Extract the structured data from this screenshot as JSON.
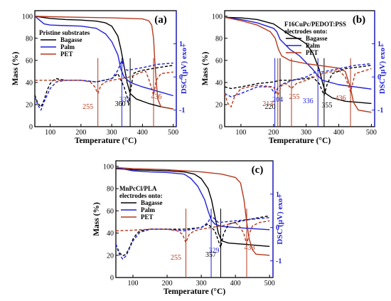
{
  "chart_data": [
    {
      "type": "line",
      "panel_label": "(a)",
      "legend_title": "Pristine substrates",
      "legend_position": "upper-left",
      "xlabel": "Temperature (°C)",
      "ylabel_left": "Mass (%)",
      "ylabel_right": "DSC (µV) exo+",
      "xlim": [
        50,
        510
      ],
      "ylim_left": [
        0,
        105
      ],
      "ylim_right": [
        -1.5,
        2
      ],
      "x_ticks": [
        100,
        200,
        300,
        400,
        500
      ],
      "y_ticks_left": [
        0,
        20,
        40,
        60,
        80,
        100
      ],
      "y_ticks_right": [
        -1,
        0,
        1
      ],
      "grid": false,
      "series": [
        {
          "name": "Bagasse",
          "color": "#000000",
          "axis": "left",
          "style": "solid",
          "x": [
            50,
            100,
            150,
            200,
            250,
            280,
            300,
            320,
            330,
            340,
            350,
            360,
            380,
            420,
            460,
            500
          ],
          "y": [
            100,
            98,
            97,
            96.5,
            95.5,
            94,
            91,
            82,
            70,
            55,
            40,
            30,
            25,
            21,
            18,
            16
          ]
        },
        {
          "name": "Palm",
          "color": "#1f1fd6",
          "axis": "left",
          "style": "solid",
          "x": [
            50,
            80,
            100,
            150,
            200,
            250,
            280,
            300,
            320,
            330,
            340,
            360,
            400,
            450,
            500
          ],
          "y": [
            100,
            93,
            92,
            91.5,
            91,
            89,
            84,
            77,
            65,
            52,
            45,
            40,
            36,
            32,
            28
          ]
        },
        {
          "name": "PET",
          "color": "#b5391c",
          "axis": "left",
          "style": "solid",
          "x": [
            50,
            100,
            200,
            300,
            360,
            400,
            420,
            430,
            436,
            440,
            445,
            450,
            460,
            500
          ],
          "y": [
            100,
            99.5,
            99,
            98.5,
            98,
            97.5,
            96,
            92,
            80,
            60,
            40,
            25,
            18,
            16
          ]
        },
        {
          "name": "Bagasse",
          "color": "#000000",
          "axis": "right",
          "style": "dashed",
          "x": [
            50,
            60,
            70,
            80,
            90,
            100,
            110,
            120,
            150,
            200,
            250,
            300,
            320,
            340,
            350,
            355,
            360,
            370,
            380,
            400,
            450,
            500
          ],
          "y": [
            -0.55,
            -0.8,
            -0.9,
            -0.7,
            -0.4,
            -0.2,
            -0.1,
            -0.05,
            -0.1,
            -0.1,
            -0.15,
            -0.05,
            0.1,
            -0.3,
            -0.6,
            -0.85,
            -0.5,
            0.1,
            0.15,
            0.2,
            0.28,
            0.35
          ]
        },
        {
          "name": "Palm",
          "color": "#1f1fd6",
          "axis": "right",
          "style": "dashed",
          "x": [
            50,
            60,
            70,
            80,
            100,
            120,
            150,
            200,
            250,
            300,
            320,
            333,
            340,
            350,
            400,
            450,
            500
          ],
          "y": [
            -0.6,
            -0.85,
            -1.0,
            -0.75,
            -0.35,
            -0.15,
            -0.1,
            -0.1,
            -0.15,
            -0.05,
            0.2,
            0.5,
            0.3,
            0.2,
            0.28,
            0.38,
            0.42
          ]
        },
        {
          "name": "PET",
          "color": "#b5391c",
          "axis": "right",
          "style": "dashed",
          "x": [
            50,
            100,
            150,
            200,
            230,
            245,
            255,
            265,
            280,
            300,
            330,
            360,
            390,
            410,
            420,
            436,
            445,
            460,
            500
          ],
          "y": [
            -0.1,
            -0.1,
            -0.1,
            -0.1,
            -0.15,
            -0.3,
            -0.5,
            -0.25,
            -0.15,
            -0.1,
            -0.05,
            0.0,
            0.12,
            0.18,
            -0.05,
            -0.55,
            -0.1,
            0.1,
            0.15
          ]
        }
      ],
      "annotations": [
        {
          "text": "255",
          "x": 255,
          "color": "#b5391c"
        },
        {
          "text": "333",
          "x": 333,
          "color": "#1f1fd6"
        },
        {
          "text": "360",
          "x": 360,
          "color": "#000000"
        },
        {
          "text": "436",
          "x": 436,
          "color": "#b5391c"
        }
      ]
    },
    {
      "type": "line",
      "panel_label": "(b)",
      "legend_title": "F16CuPc/PEDOT:PSS",
      "legend_subtitle": "electrodes onto:",
      "legend_position": "upper-right",
      "xlabel": "Temperature (°C)",
      "ylabel_left": "Mass (%)",
      "ylabel_right": "DSC (µV) exo+",
      "xlim": [
        50,
        510
      ],
      "ylim_left": [
        0,
        105
      ],
      "ylim_right": [
        -1.5,
        2
      ],
      "x_ticks": [
        100,
        200,
        300,
        400,
        500
      ],
      "y_ticks_left": [
        0,
        20,
        40,
        60,
        80,
        100
      ],
      "y_ticks_right": [
        -1,
        0,
        1
      ],
      "grid": false,
      "series": [
        {
          "name": "Bagasse",
          "color": "#000000",
          "axis": "left",
          "style": "solid",
          "x": [
            50,
            100,
            150,
            200,
            220,
            250,
            280,
            300,
            320,
            340,
            350,
            355,
            360,
            380,
            420,
            460,
            500
          ],
          "y": [
            99,
            98.5,
            97,
            93,
            89,
            83,
            79,
            75,
            67,
            52,
            40,
            35,
            30,
            26,
            23,
            22,
            21
          ]
        },
        {
          "name": "Palm",
          "color": "#1f1fd6",
          "axis": "left",
          "style": "solid",
          "x": [
            50,
            100,
            150,
            200,
            210,
            220,
            250,
            280,
            300,
            320,
            336,
            350,
            400,
            450,
            500
          ],
          "y": [
            99,
            97,
            94,
            89,
            86,
            79,
            70,
            64,
            58,
            52,
            46,
            42,
            38,
            36,
            34
          ]
        },
        {
          "name": "PET",
          "color": "#b5391c",
          "axis": "left",
          "style": "solid",
          "x": [
            50,
            100,
            150,
            190,
            205,
            215,
            225,
            250,
            300,
            350,
            400,
            420,
            436,
            445,
            460,
            500
          ],
          "y": [
            99,
            96,
            92,
            86,
            80,
            70,
            64,
            60,
            57,
            55,
            53,
            50,
            35,
            22,
            15,
            13
          ]
        },
        {
          "name": "Bagasse",
          "color": "#000000",
          "axis": "right",
          "style": "dashed",
          "x": [
            50,
            70,
            100,
            150,
            200,
            220,
            250,
            300,
            320,
            340,
            355,
            365,
            380,
            420,
            460,
            500
          ],
          "y": [
            -0.3,
            -0.35,
            -0.3,
            -0.2,
            -0.15,
            -0.1,
            -0.1,
            -0.05,
            0.0,
            -0.2,
            -0.55,
            -0.2,
            0.1,
            0.25,
            0.3,
            0.35
          ]
        },
        {
          "name": "Palm",
          "color": "#1f1fd6",
          "axis": "right",
          "style": "dashed",
          "x": [
            50,
            70,
            100,
            150,
            190,
            204,
            215,
            230,
            260,
            300,
            320,
            336,
            350,
            400,
            450,
            500
          ],
          "y": [
            -0.5,
            -0.6,
            -0.5,
            -0.3,
            -0.3,
            -0.5,
            -0.3,
            -0.2,
            -0.1,
            0.0,
            0.1,
            0.2,
            0.15,
            0.25,
            0.35,
            0.4
          ]
        },
        {
          "name": "PET",
          "color": "#b5391c",
          "axis": "right",
          "style": "dashed",
          "x": [
            50,
            60,
            70,
            80,
            100,
            150,
            200,
            213,
            225,
            240,
            255,
            270,
            300,
            350,
            400,
            420,
            436,
            450,
            500
          ],
          "y": [
            -0.5,
            -0.8,
            -0.9,
            -0.6,
            -0.35,
            -0.25,
            -0.3,
            -0.55,
            -0.25,
            -0.2,
            -0.35,
            -0.2,
            -0.1,
            0.1,
            0.2,
            0.0,
            -0.45,
            0.1,
            0.25
          ]
        }
      ],
      "annotations": [
        {
          "text": "220",
          "x": 220,
          "color": "#000000"
        },
        {
          "text": "204",
          "x": 204,
          "color": "#1f1fd6"
        },
        {
          "text": "213",
          "x": 213,
          "color": "#b5391c"
        },
        {
          "text": "255",
          "x": 255,
          "color": "#b5391c"
        },
        {
          "text": "336",
          "x": 336,
          "color": "#1f1fd6"
        },
        {
          "text": "355",
          "x": 355,
          "color": "#000000"
        },
        {
          "text": "436",
          "x": 436,
          "color": "#b5391c"
        }
      ]
    },
    {
      "type": "line",
      "panel_label": "(c)",
      "legend_title": "MnPcCl/PLA",
      "legend_subtitle": "electrodes onto:",
      "legend_position": "middle-left",
      "xlabel": "Temperature (°C)",
      "ylabel_left": "Mass (%)",
      "ylabel_right": "DSC (µV) exo+",
      "xlim": [
        50,
        510
      ],
      "ylim_left": [
        0,
        105
      ],
      "ylim_right": [
        -1.5,
        2
      ],
      "x_ticks": [
        100,
        200,
        300,
        400,
        500
      ],
      "y_ticks_left": [
        0,
        20,
        40,
        60,
        80,
        100
      ],
      "y_ticks_right": [
        -1,
        0,
        1
      ],
      "grid": false,
      "series": [
        {
          "name": "Bagasse",
          "color": "#000000",
          "axis": "left",
          "style": "solid",
          "x": [
            50,
            100,
            150,
            200,
            250,
            280,
            300,
            320,
            330,
            340,
            350,
            357,
            360,
            380,
            420,
            460,
            500
          ],
          "y": [
            98,
            97,
            96.5,
            96,
            95,
            93,
            89,
            80,
            70,
            55,
            40,
            35,
            33,
            31,
            30,
            29,
            28
          ]
        },
        {
          "name": "Palm",
          "color": "#1f1fd6",
          "axis": "left",
          "style": "solid",
          "x": [
            50,
            100,
            150,
            200,
            250,
            270,
            290,
            310,
            320,
            329,
            340,
            360,
            400,
            450,
            500
          ],
          "y": [
            99,
            96,
            95,
            94.5,
            93,
            89,
            82,
            70,
            60,
            52,
            48,
            46,
            45,
            44,
            43
          ]
        },
        {
          "name": "PET",
          "color": "#b5391c",
          "axis": "left",
          "style": "solid",
          "x": [
            50,
            100,
            200,
            300,
            360,
            400,
            415,
            425,
            433,
            440,
            450,
            460,
            500
          ],
          "y": [
            99,
            98,
            97,
            95,
            93,
            90,
            85,
            70,
            50,
            35,
            25,
            21,
            20
          ]
        },
        {
          "name": "Bagasse",
          "color": "#000000",
          "axis": "right",
          "style": "dashed",
          "x": [
            50,
            60,
            70,
            80,
            90,
            100,
            110,
            120,
            150,
            200,
            250,
            300,
            320,
            340,
            357,
            365,
            380,
            420,
            460,
            500
          ],
          "y": [
            -0.5,
            -0.75,
            -0.85,
            -0.8,
            -0.6,
            -0.35,
            -0.2,
            -0.1,
            -0.05,
            -0.05,
            -0.05,
            0.0,
            0.1,
            -0.1,
            -0.6,
            -0.2,
            0.1,
            0.2,
            0.28,
            0.35
          ]
        },
        {
          "name": "Palm",
          "color": "#1f1fd6",
          "axis": "right",
          "style": "dashed",
          "x": [
            50,
            60,
            70,
            80,
            100,
            120,
            150,
            200,
            250,
            300,
            320,
            329,
            340,
            350,
            400,
            450,
            500
          ],
          "y": [
            -0.5,
            -0.8,
            -0.95,
            -0.85,
            -0.4,
            -0.15,
            -0.05,
            -0.05,
            -0.1,
            0.0,
            0.15,
            0.35,
            0.25,
            0.15,
            0.2,
            0.25,
            0.3
          ]
        },
        {
          "name": "PET",
          "color": "#b5391c",
          "axis": "right",
          "style": "dashed",
          "x": [
            50,
            100,
            150,
            200,
            230,
            245,
            255,
            265,
            280,
            300,
            330,
            360,
            380,
            400,
            415,
            425,
            433,
            440,
            450,
            470,
            500
          ],
          "y": [
            -0.1,
            -0.08,
            -0.05,
            -0.05,
            -0.1,
            -0.2,
            -0.45,
            -0.2,
            -0.1,
            -0.05,
            0.0,
            0.05,
            0.1,
            0.15,
            0.0,
            -0.2,
            -0.5,
            -0.2,
            0.05,
            0.15,
            0.2
          ]
        }
      ],
      "annotations": [
        {
          "text": "255",
          "x": 255,
          "color": "#b5391c"
        },
        {
          "text": "329",
          "x": 329,
          "color": "#1f1fd6"
        },
        {
          "text": "357",
          "x": 357,
          "color": "#000000"
        },
        {
          "text": "433",
          "x": 433,
          "color": "#b5391c"
        }
      ]
    }
  ]
}
